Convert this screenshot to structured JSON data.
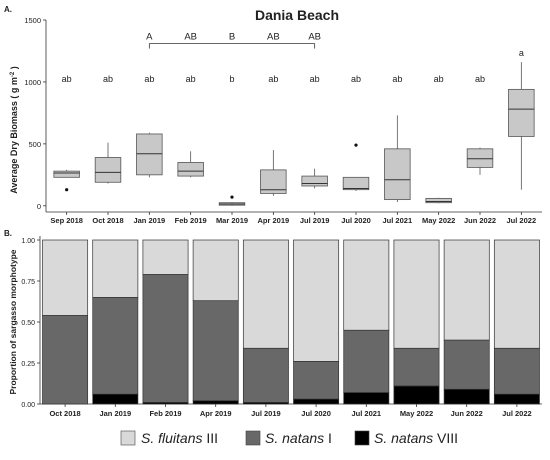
{
  "panel_a": {
    "tag": "A.",
    "title": "Dania Beach",
    "ylabel_main": "Average Dry Biomass ( g m",
    "ylabel_sup": "-2",
    "ylabel_end": " )",
    "bracket_letters": [
      "A",
      "AB",
      "B",
      "AB",
      "AB"
    ]
  },
  "panel_b": {
    "tag": "B.",
    "ylabel": "Proportion of sargasso morphotype"
  },
  "legend": {
    "items": [
      {
        "species": "S. fluitans",
        "morph": " III",
        "color": "#d9d9d9"
      },
      {
        "species": "S. natans",
        "morph": " I",
        "color": "#686868"
      },
      {
        "species": "S. natans",
        "morph": " VIII",
        "color": "#000000"
      }
    ]
  },
  "chart_data": [
    {
      "type": "box",
      "title": "Dania Beach",
      "ylabel": "Average Dry Biomass ( g m-2 )",
      "ylim": [
        -50,
        1500
      ],
      "yticks": [
        0,
        500,
        1000,
        1500
      ],
      "grid": false,
      "categories": [
        "Sep 2018",
        "Oct 2018",
        "Jan 2019",
        "Feb 2019",
        "Mar 2019",
        "Apr 2019",
        "Jul 2019",
        "Jul 2020",
        "Jul 2021",
        "May 2022",
        "Jun 2022",
        "Jul 2022"
      ],
      "boxes": [
        {
          "min": 230,
          "q1": 230,
          "median": 265,
          "q3": 280,
          "max": 290,
          "outliers": [
            130
          ]
        },
        {
          "min": 180,
          "q1": 190,
          "median": 270,
          "q3": 390,
          "max": 510,
          "outliers": []
        },
        {
          "min": 230,
          "q1": 250,
          "median": 420,
          "q3": 580,
          "max": 590,
          "outliers": []
        },
        {
          "min": 230,
          "q1": 240,
          "median": 280,
          "q3": 350,
          "max": 440,
          "outliers": []
        },
        {
          "min": 0,
          "q1": 5,
          "median": 15,
          "q3": 25,
          "max": 30,
          "outliers": [
            70
          ]
        },
        {
          "min": 80,
          "q1": 100,
          "median": 130,
          "q3": 290,
          "max": 450,
          "outliers": []
        },
        {
          "min": 140,
          "q1": 160,
          "median": 180,
          "q3": 240,
          "max": 300,
          "outliers": []
        },
        {
          "min": 120,
          "q1": 130,
          "median": 140,
          "q3": 230,
          "max": 230,
          "outliers": [
            490
          ]
        },
        {
          "min": 30,
          "q1": 50,
          "median": 210,
          "q3": 460,
          "max": 730,
          "outliers": []
        },
        {
          "min": 20,
          "q1": 25,
          "median": 35,
          "q3": 60,
          "max": 65,
          "outliers": []
        },
        {
          "min": 250,
          "q1": 310,
          "median": 380,
          "q3": 460,
          "max": 470,
          "outliers": []
        },
        {
          "min": 130,
          "q1": 560,
          "median": 780,
          "q3": 940,
          "max": 1160,
          "outliers": []
        }
      ],
      "group_letters": [
        "ab",
        "ab",
        "ab",
        "ab",
        "b",
        "ab",
        "ab",
        "ab",
        "ab",
        "ab",
        "ab",
        "a"
      ],
      "group_letter_y": [
        1000,
        1000,
        1000,
        1000,
        1000,
        1000,
        1000,
        1000,
        1000,
        1000,
        1000,
        1210
      ],
      "bracket": {
        "from": "Jan 2019",
        "to": "Jul 2019",
        "letters": [
          "A",
          "AB",
          "B",
          "AB",
          "AB"
        ],
        "y": 1310
      }
    },
    {
      "type": "stacked_bar",
      "ylabel": "Proportion of sargasso morphotype",
      "ylim": [
        0,
        1
      ],
      "yticks": [
        0.0,
        0.25,
        0.5,
        0.75,
        1.0
      ],
      "ytick_labels": [
        "0.00",
        "0.25",
        "0.50",
        "0.75",
        "1.00"
      ],
      "categories": [
        "Oct 2018",
        "Jan 2019",
        "Feb 2019",
        "Apr 2019",
        "Jul 2019",
        "Jul 2020",
        "Jul 2021",
        "May 2022",
        "Jun 2022",
        "Jul 2022"
      ],
      "series": [
        {
          "name": "S. natans VIII",
          "color": "#000000",
          "values": [
            0.0,
            0.06,
            0.01,
            0.02,
            0.01,
            0.03,
            0.07,
            0.11,
            0.09,
            0.06
          ]
        },
        {
          "name": "S. natans I",
          "color": "#686868",
          "values": [
            0.54,
            0.59,
            0.78,
            0.61,
            0.33,
            0.23,
            0.38,
            0.23,
            0.3,
            0.28
          ]
        },
        {
          "name": "S. fluitans III",
          "color": "#d9d9d9",
          "values": [
            0.46,
            0.35,
            0.21,
            0.37,
            0.66,
            0.74,
            0.55,
            0.66,
            0.61,
            0.66
          ]
        }
      ]
    }
  ]
}
